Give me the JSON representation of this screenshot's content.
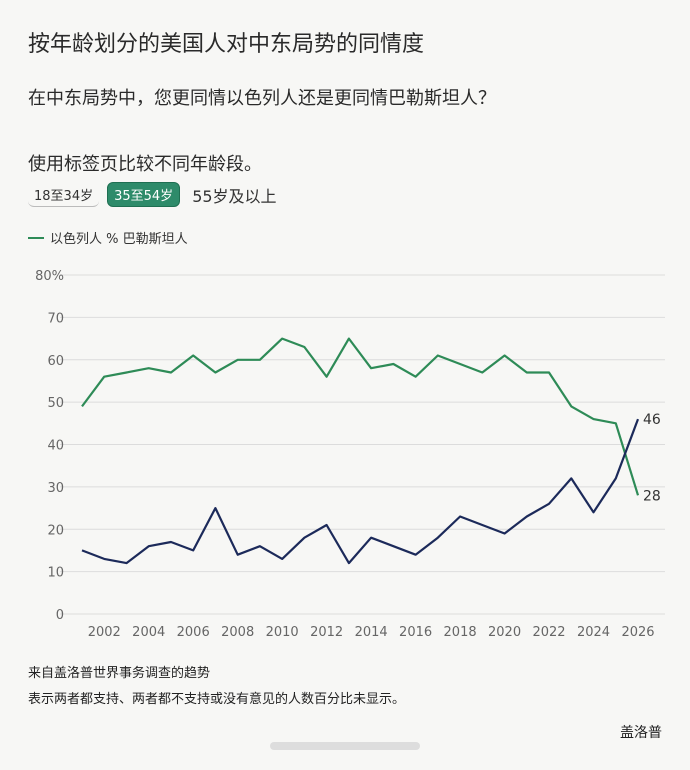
{
  "header": {
    "title": "按年龄划分的美国人对中东局势的同情度",
    "subtitle": "在中东局势中，您更同情以色列人还是更同情巴勒斯坦人？",
    "instruction": "使用标签页比较不同年龄段。"
  },
  "tabs": [
    {
      "label": "18至34岁",
      "active": false
    },
    {
      "label": "35至54岁",
      "active": true
    },
    {
      "label": "55岁及以上",
      "active": false
    }
  ],
  "legend_text": "以色列人 % 巴勒斯坦人",
  "colors": {
    "israel": "#2e8b57",
    "palestine": "#1c2a5a",
    "grid": "#dcdcdc"
  },
  "chart_data": {
    "type": "line",
    "x": [
      2001,
      2002,
      2003,
      2004,
      2005,
      2006,
      2007,
      2008,
      2009,
      2010,
      2011,
      2012,
      2013,
      2014,
      2015,
      2016,
      2017,
      2018,
      2019,
      2020,
      2021,
      2022,
      2023,
      2024,
      2025,
      2026
    ],
    "series": [
      {
        "name": "以色列人",
        "values": [
          49,
          56,
          57,
          58,
          57,
          61,
          57,
          60,
          60,
          65,
          63,
          56,
          65,
          58,
          59,
          56,
          61,
          59,
          57,
          61,
          57,
          57,
          49,
          46,
          45,
          28
        ]
      },
      {
        "name": "巴勒斯坦人",
        "values": [
          15,
          13,
          12,
          16,
          17,
          15,
          25,
          14,
          16,
          13,
          18,
          21,
          12,
          18,
          16,
          14,
          18,
          23,
          21,
          19,
          23,
          26,
          32,
          24,
          32,
          46
        ]
      }
    ],
    "xticks": [
      "2002",
      "2004",
      "2006",
      "2008",
      "2010",
      "2012",
      "2014",
      "2016",
      "2018",
      "2020",
      "2022",
      "2024",
      "2026"
    ],
    "yticks": [
      "0",
      "10",
      "20",
      "30",
      "40",
      "50",
      "60",
      "70",
      "80%"
    ],
    "ylim": [
      0,
      80
    ],
    "end_labels": [
      "46",
      "28"
    ],
    "grid": "horizontal"
  },
  "footer": {
    "note1": "来自盖洛普世界事务调查的趋势",
    "note2": "表示两者都支持、两者都不支持或没有意见的人数百分比未显示。",
    "brand": "盖洛普"
  }
}
